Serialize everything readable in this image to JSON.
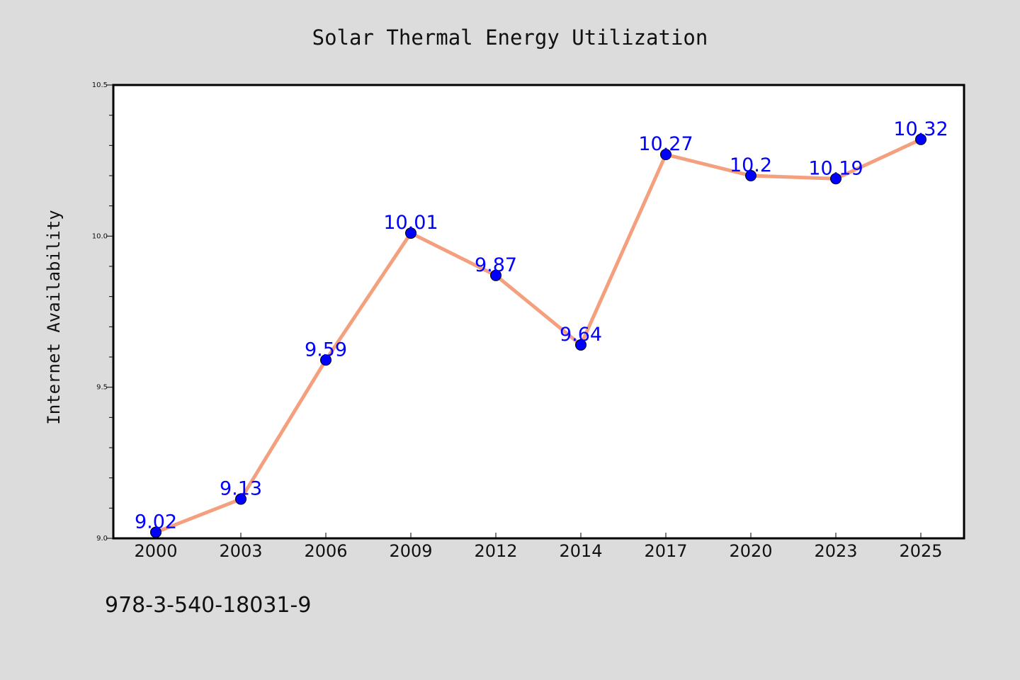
{
  "colors": {
    "background": "#dcdcdc",
    "plot_background": "#ffffff",
    "line": "#f4a07e",
    "marker": "#0000ff",
    "data_label": "#0000ff",
    "text": "#111111"
  },
  "footer_text": "978-3-540-18031-9",
  "chart_data": {
    "type": "line",
    "title": "Solar Thermal Energy Utilization",
    "xlabel": "",
    "ylabel": "Internet Availability",
    "categories": [
      "2000",
      "2003",
      "2006",
      "2009",
      "2012",
      "2014",
      "2017",
      "2020",
      "2023",
      "2025"
    ],
    "series": [
      {
        "values": [
          9.02,
          9.13,
          9.59,
          10.01,
          9.87,
          9.64,
          10.27,
          10.2,
          10.19,
          10.32
        ],
        "labels": [
          "9.02",
          "9.13",
          "9.59",
          "10.01",
          "9.87",
          "9.64",
          "10.27",
          "10.2",
          "10.19",
          "10.32"
        ]
      }
    ],
    "ylim": [
      9.0,
      10.5
    ],
    "yticks": [
      9.0,
      9.5,
      10.0,
      10.5
    ],
    "ytick_labels": [
      "9.0",
      "9.5",
      "10.0",
      "10.5"
    ],
    "y_minor_step": 0.1,
    "grid": false,
    "legend": "none"
  }
}
